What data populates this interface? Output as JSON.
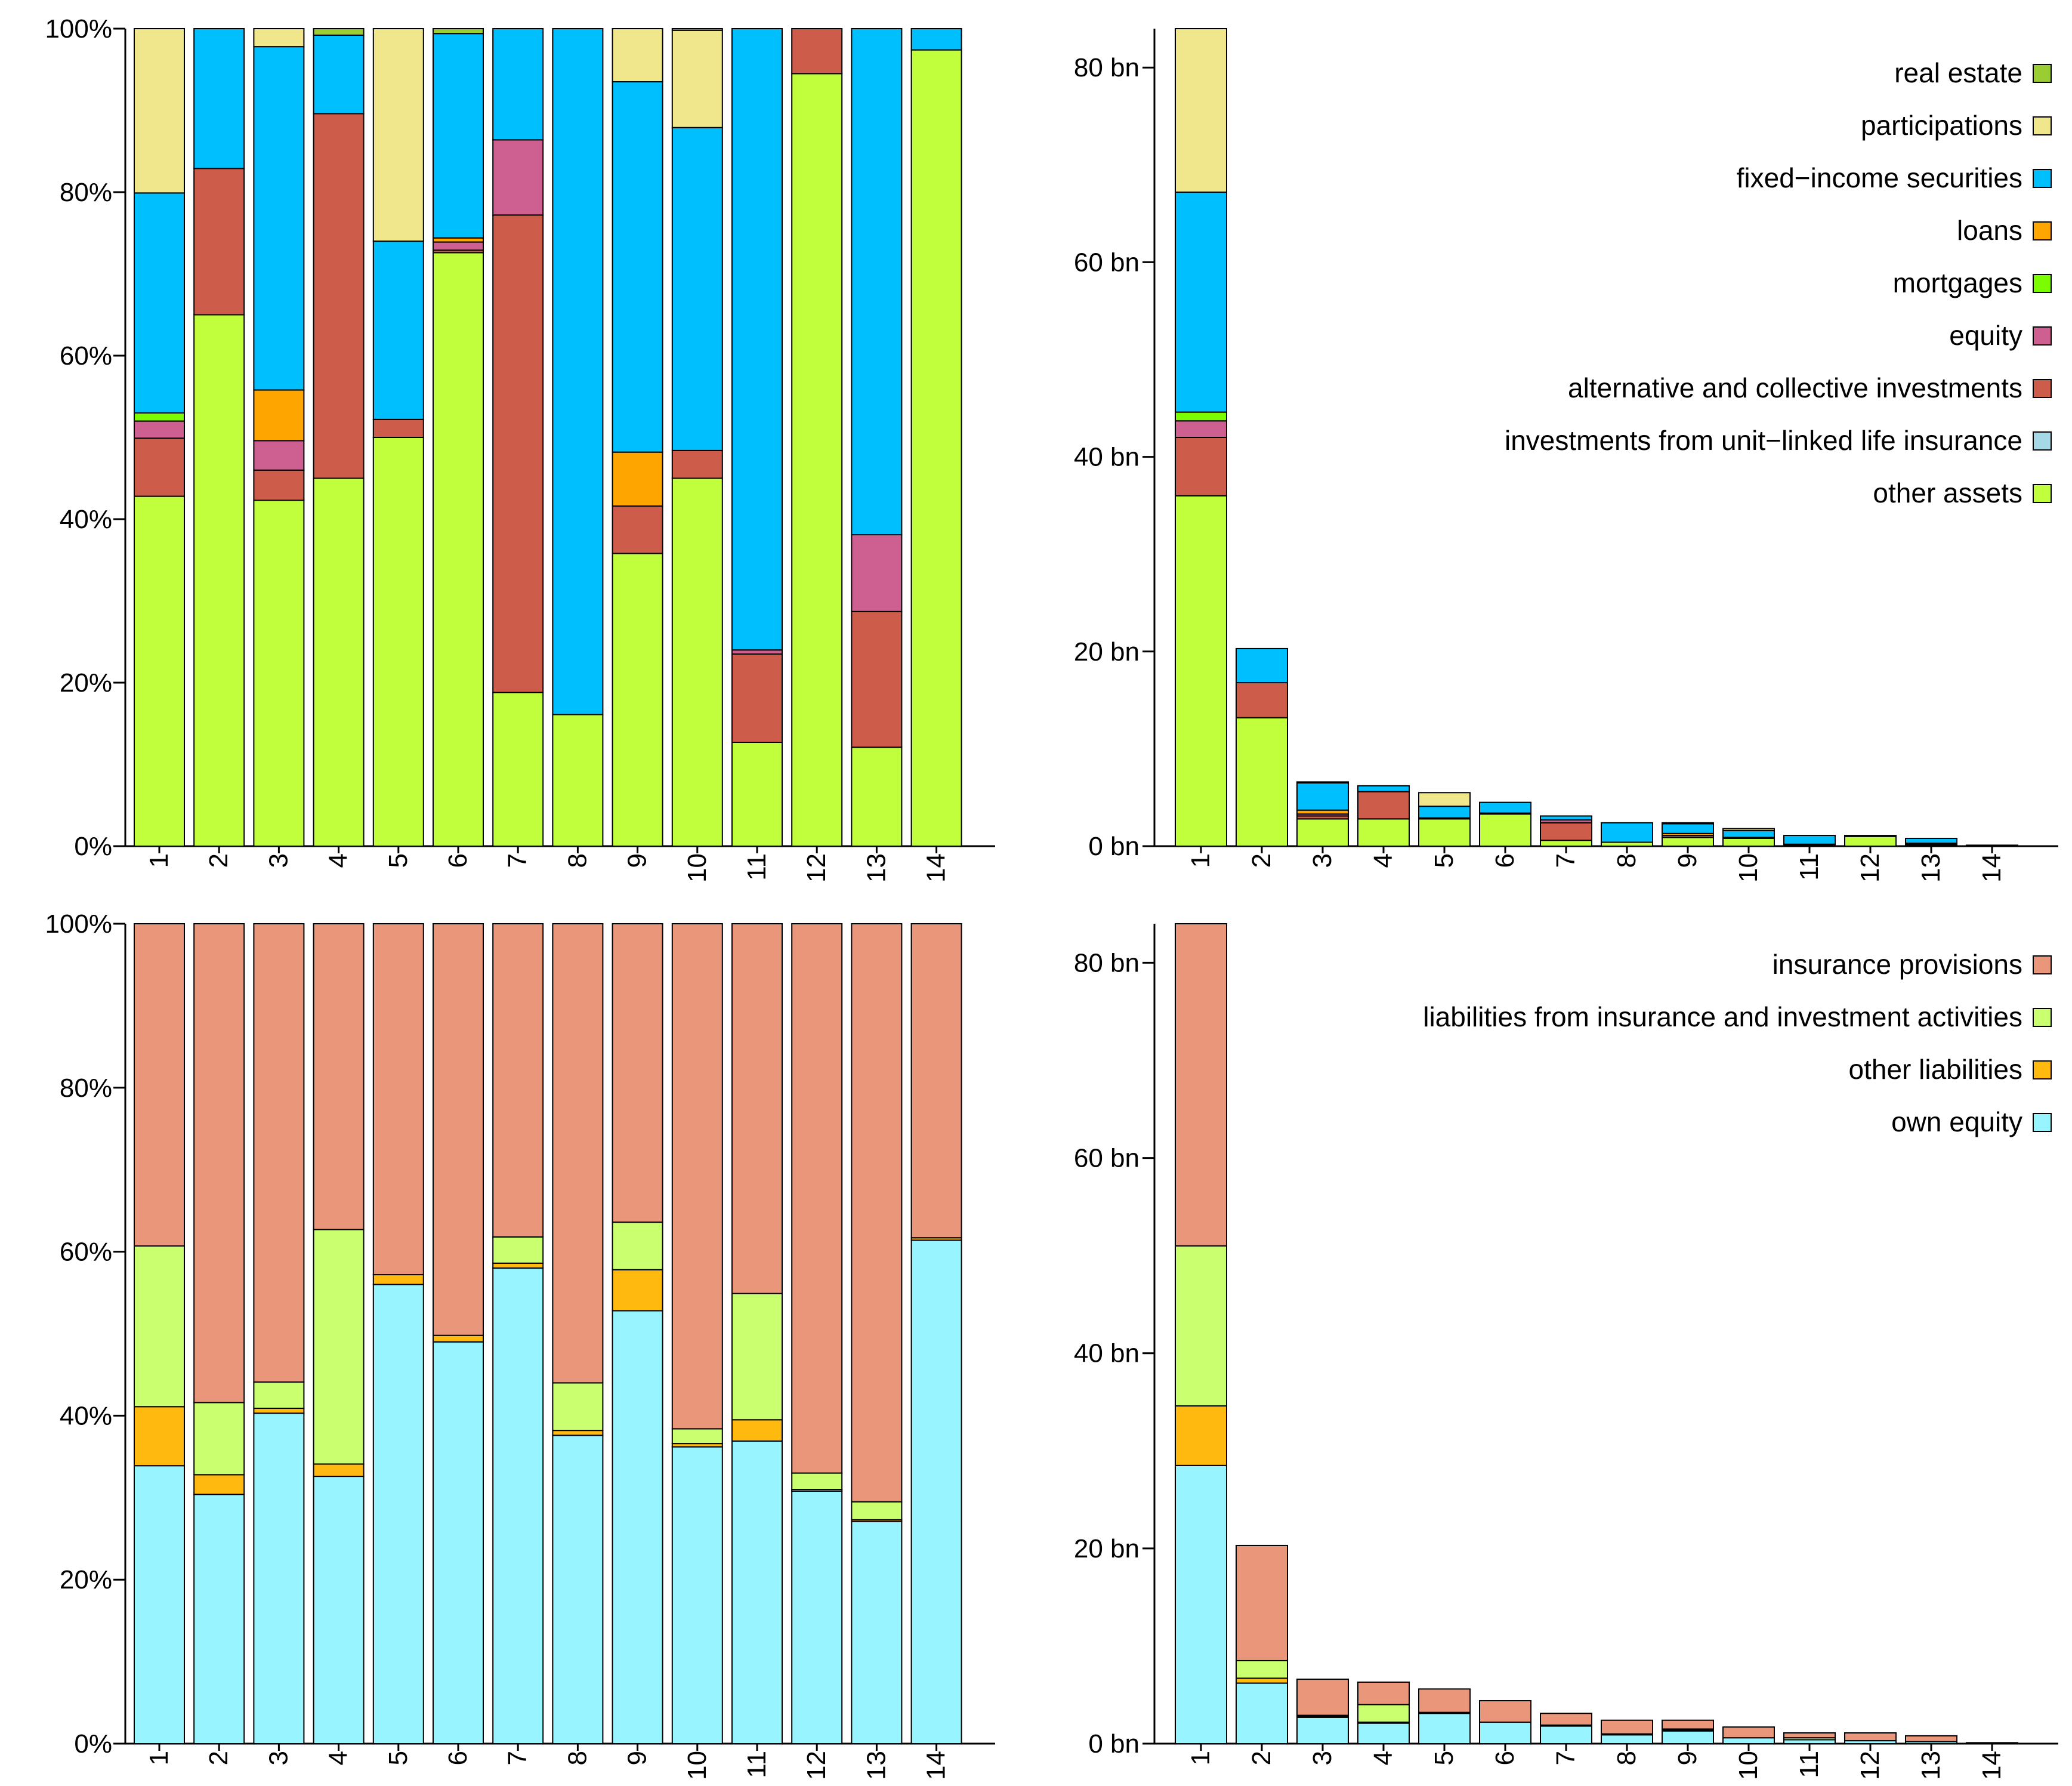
{
  "chart_data": [
    {
      "id": "assets-share",
      "type": "bar",
      "stacked": true,
      "unit": "percent",
      "categories": [
        "1",
        "2",
        "3",
        "4",
        "5",
        "6",
        "7",
        "8",
        "9",
        "10",
        "11",
        "12",
        "13",
        "14"
      ],
      "ylim": [
        0,
        100
      ],
      "y_ticks": [
        "0%",
        "20%",
        "40%",
        "60%",
        "80%",
        "100%"
      ],
      "series": [
        {
          "name": "other assets",
          "color": "#c1ff3c",
          "values": [
            42.8,
            65.0,
            42.3,
            45.0,
            50.0,
            72.6,
            18.8,
            16.1,
            35.8,
            45.0,
            12.7,
            94.5,
            12.1,
            97.4
          ]
        },
        {
          "name": "investments from unit-linked life insurance",
          "color": "#a6d8e6",
          "values": [
            0,
            0,
            0,
            0,
            0,
            0,
            0,
            0,
            0,
            0,
            0,
            0,
            0,
            0
          ]
        },
        {
          "name": "alternative and collective investments",
          "color": "#cd5c4a",
          "values": [
            7.1,
            17.9,
            3.7,
            44.6,
            2.2,
            0.3,
            58.4,
            0,
            5.8,
            3.4,
            10.8,
            5.5,
            16.6,
            0
          ]
        },
        {
          "name": "equity",
          "color": "#cd5f91",
          "values": [
            2.1,
            0,
            3.6,
            0,
            0,
            1.0,
            9.2,
            0,
            0,
            0,
            0.5,
            0,
            9.4,
            0
          ]
        },
        {
          "name": "mortgages",
          "color": "#7cfc00",
          "values": [
            1.0,
            0,
            0,
            0,
            0,
            0,
            0,
            0,
            0,
            0,
            0,
            0,
            0,
            0
          ]
        },
        {
          "name": "loans",
          "color": "#ffa500",
          "values": [
            0,
            0,
            6.2,
            0,
            0,
            0.5,
            0,
            0,
            6.6,
            0,
            0,
            0,
            0,
            0
          ]
        },
        {
          "name": "fixed-income securities",
          "color": "#00bfff",
          "values": [
            26.9,
            17.1,
            42.0,
            9.6,
            21.8,
            25.0,
            13.6,
            83.9,
            45.3,
            39.5,
            76.0,
            0,
            61.9,
            2.6
          ]
        },
        {
          "name": "participations",
          "color": "#f0e68c",
          "values": [
            20.1,
            0,
            2.2,
            0,
            26.0,
            0,
            0,
            0,
            6.5,
            11.9,
            0,
            0,
            0,
            0
          ]
        },
        {
          "name": "real estate",
          "color": "#9acd32",
          "values": [
            0,
            0,
            0,
            0.8,
            0,
            0.6,
            0,
            0,
            0,
            0.2,
            0,
            0,
            0,
            0
          ]
        }
      ]
    },
    {
      "id": "assets-absolute",
      "type": "bar",
      "stacked": true,
      "unit": "bn",
      "categories": [
        "1",
        "2",
        "3",
        "4",
        "5",
        "6",
        "7",
        "8",
        "9",
        "10",
        "11",
        "12",
        "13",
        "14"
      ],
      "ylim": [
        0,
        84
      ],
      "y_ticks": [
        "0 bn",
        "20 bn",
        "40 bn",
        "60 bn",
        "80 bn"
      ],
      "series": [
        {
          "name": "other assets",
          "color": "#c1ff3c",
          "values": [
            36.0,
            13.2,
            2.8,
            2.8,
            2.8,
            3.3,
            0.6,
            0.4,
            0.9,
            0.8,
            0.1,
            1.0,
            0.1,
            0.1
          ]
        },
        {
          "name": "investments from unit-linked life insurance",
          "color": "#a6d8e6",
          "values": [
            0,
            0,
            0,
            0,
            0,
            0,
            0,
            0,
            0,
            0,
            0,
            0,
            0,
            0
          ]
        },
        {
          "name": "alternative and collective investments",
          "color": "#cd5c4a",
          "values": [
            6.0,
            3.6,
            0.3,
            2.8,
            0.1,
            0,
            1.8,
            0,
            0.2,
            0.1,
            0.1,
            0.1,
            0.1,
            0
          ]
        },
        {
          "name": "equity",
          "color": "#cd5f91",
          "values": [
            1.7,
            0,
            0.2,
            0,
            0,
            0.1,
            0.3,
            0,
            0,
            0,
            0,
            0,
            0.1,
            0
          ]
        },
        {
          "name": "mortgages",
          "color": "#7cfc00",
          "values": [
            0.9,
            0,
            0,
            0,
            0,
            0,
            0,
            0,
            0,
            0,
            0,
            0,
            0,
            0
          ]
        },
        {
          "name": "loans",
          "color": "#ffa500",
          "values": [
            0,
            0,
            0.4,
            0,
            0,
            0,
            0,
            0,
            0.2,
            0,
            0,
            0,
            0,
            0
          ]
        },
        {
          "name": "fixed-income securities",
          "color": "#00bfff",
          "values": [
            22.6,
            3.5,
            2.8,
            0.6,
            1.2,
            1.1,
            0.4,
            2.0,
            1.0,
            0.7,
            0.9,
            0,
            0.5,
            0
          ]
        },
        {
          "name": "participations",
          "color": "#f0e68c",
          "values": [
            16.8,
            0,
            0.1,
            0,
            1.4,
            0,
            0,
            0,
            0.1,
            0.2,
            0,
            0,
            0,
            0
          ]
        },
        {
          "name": "real estate",
          "color": "#9acd32",
          "values": [
            0,
            0,
            0,
            0,
            0,
            0,
            0,
            0,
            0,
            0,
            0,
            0,
            0,
            0
          ]
        }
      ],
      "legend": {
        "position": "top-right",
        "items": [
          {
            "label": "real estate",
            "color": "#9acd32"
          },
          {
            "label": "participations",
            "color": "#f0e68c"
          },
          {
            "label": "fixed−income securities",
            "color": "#00bfff"
          },
          {
            "label": "loans",
            "color": "#ffa500"
          },
          {
            "label": "mortgages",
            "color": "#7cfc00"
          },
          {
            "label": "equity",
            "color": "#cd5f91"
          },
          {
            "label": "alternative and collective investments",
            "color": "#cd5c4a"
          },
          {
            "label": "investments from unit−linked life insurance",
            "color": "#a6d8e6"
          },
          {
            "label": "other assets",
            "color": "#c1ff3c"
          }
        ]
      }
    },
    {
      "id": "liabilities-share",
      "type": "bar",
      "stacked": true,
      "unit": "percent",
      "categories": [
        "1",
        "2",
        "3",
        "4",
        "5",
        "6",
        "7",
        "8",
        "9",
        "10",
        "11",
        "12",
        "13",
        "14"
      ],
      "ylim": [
        0,
        100
      ],
      "y_ticks": [
        "0%",
        "20%",
        "40%",
        "60%",
        "80%",
        "100%"
      ],
      "series": [
        {
          "name": "own equity",
          "color": "#98f5ff",
          "values": [
            33.9,
            30.4,
            40.3,
            32.6,
            56.0,
            49.0,
            58.0,
            37.6,
            52.8,
            36.2,
            36.9,
            30.8,
            27.1,
            61.4
          ]
        },
        {
          "name": "other liabilities",
          "color": "#ffb90f",
          "values": [
            7.2,
            2.4,
            0.6,
            1.5,
            1.2,
            0.8,
            0.6,
            0.6,
            5.0,
            0.4,
            2.6,
            0.2,
            0.2,
            0.3
          ]
        },
        {
          "name": "liabilities from insurance and investment activities",
          "color": "#caff70",
          "values": [
            19.6,
            8.8,
            3.2,
            28.6,
            0,
            0,
            3.2,
            5.8,
            5.8,
            1.8,
            15.4,
            2.0,
            2.2,
            0
          ]
        },
        {
          "name": "insurance provisions",
          "color": "#e9967a",
          "values": [
            39.3,
            58.4,
            55.9,
            37.3,
            42.8,
            50.2,
            38.2,
            56.0,
            36.4,
            61.6,
            45.1,
            67.0,
            70.5,
            38.3
          ]
        }
      ]
    },
    {
      "id": "liabilities-absolute",
      "type": "bar",
      "stacked": true,
      "unit": "bn",
      "categories": [
        "1",
        "2",
        "3",
        "4",
        "5",
        "6",
        "7",
        "8",
        "9",
        "10",
        "11",
        "12",
        "13",
        "14"
      ],
      "ylim": [
        0,
        84
      ],
      "y_ticks": [
        "0 bn",
        "20 bn",
        "40 bn",
        "60 bn",
        "80 bn"
      ],
      "series": [
        {
          "name": "own equity",
          "color": "#98f5ff",
          "values": [
            28.5,
            6.2,
            2.7,
            2.1,
            3.1,
            2.2,
            1.8,
            0.9,
            1.3,
            0.6,
            0.4,
            0.3,
            0.2,
            0.1
          ]
        },
        {
          "name": "other liabilities",
          "color": "#ffb90f",
          "values": [
            6.1,
            0.5,
            0.1,
            0.1,
            0.1,
            0,
            0,
            0,
            0.1,
            0,
            0,
            0,
            0,
            0
          ]
        },
        {
          "name": "liabilities from insurance and investment activities",
          "color": "#caff70",
          "values": [
            16.4,
            1.8,
            0.1,
            1.8,
            0,
            0,
            0.1,
            0.1,
            0.1,
            0,
            0.2,
            0,
            0,
            0
          ]
        },
        {
          "name": "insurance provisions",
          "color": "#e9967a",
          "values": [
            33.0,
            11.8,
            3.7,
            2.3,
            2.4,
            2.2,
            1.2,
            1.4,
            0.9,
            1.1,
            0.5,
            0.8,
            0.6,
            0
          ]
        }
      ],
      "legend": {
        "position": "top-right",
        "items": [
          {
            "label": "insurance provisions",
            "color": "#e9967a"
          },
          {
            "label": "liabilities from insurance and investment activities",
            "color": "#caff70"
          },
          {
            "label": "other liabilities",
            "color": "#ffb90f"
          },
          {
            "label": "own equity",
            "color": "#98f5ff"
          }
        ]
      }
    }
  ]
}
